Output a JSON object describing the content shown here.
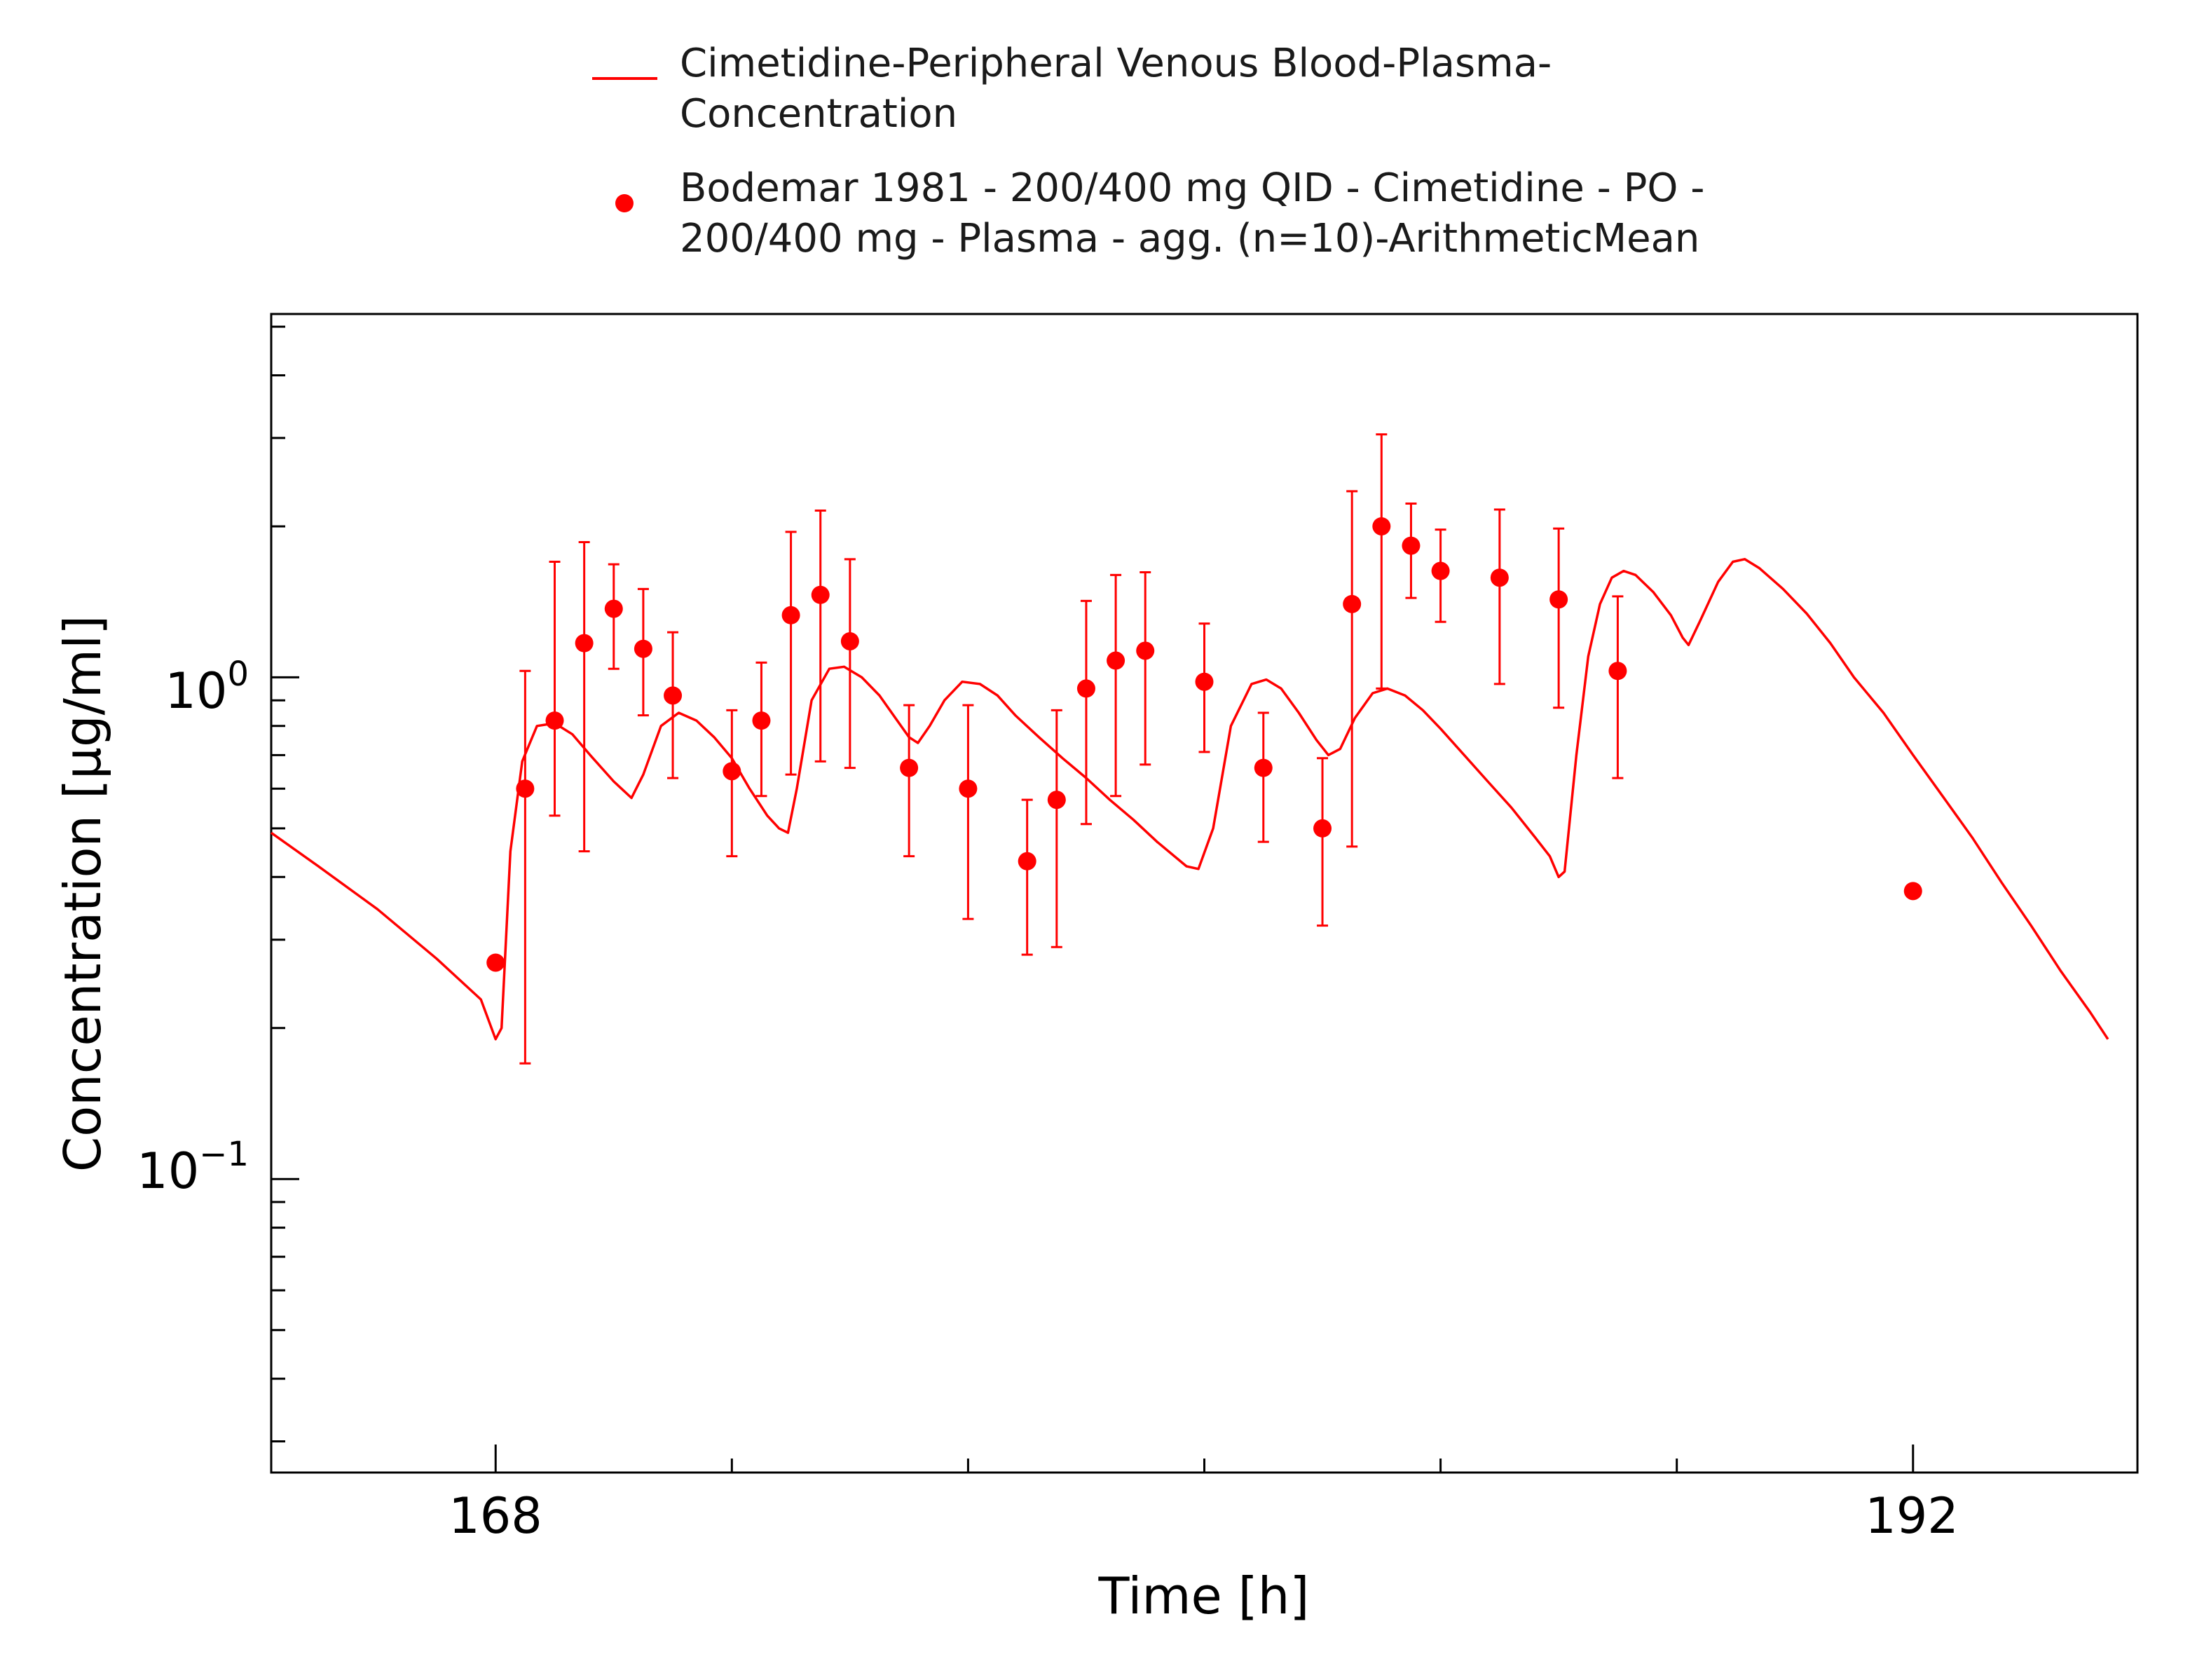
{
  "chart_data": {
    "type": "line",
    "xlabel": "Time [h]",
    "ylabel": "Concentration [µg/ml]",
    "xlim": [
      164.2,
      195.8
    ],
    "ylim": [
      0.026,
      5.3
    ],
    "yscale": "log",
    "grid": false,
    "legend_position": "top",
    "x_ticks": [
      {
        "value": 168,
        "label": "168"
      },
      {
        "value": 192,
        "label": "192"
      }
    ],
    "y_ticks": [
      {
        "value": 1.0,
        "base": "10",
        "exp": "0"
      },
      {
        "value": 0.1,
        "base": "10",
        "exp": "−1"
      }
    ],
    "color": "#ff0000",
    "legend": [
      {
        "kind": "line",
        "lines": [
          "Cimetidine-Peripheral Venous Blood-Plasma-",
          "Concentration"
        ]
      },
      {
        "kind": "marker",
        "lines": [
          "Bodemar 1981 - 200/400 mg QID - Cimetidine - PO -",
          "200/400 mg - Plasma - agg. (n=10)-ArithmeticMean"
        ]
      }
    ],
    "series": [
      {
        "kind": "line",
        "points": [
          [
            164.2,
            0.49
          ],
          [
            165,
            0.42
          ],
          [
            166,
            0.345
          ],
          [
            167,
            0.275
          ],
          [
            167.75,
            0.228
          ],
          [
            168,
            0.19
          ],
          [
            168.1,
            0.2
          ],
          [
            168.25,
            0.45
          ],
          [
            168.45,
            0.68
          ],
          [
            168.7,
            0.8
          ],
          [
            169.0,
            0.81
          ],
          [
            169.3,
            0.77
          ],
          [
            169.6,
            0.7
          ],
          [
            170.0,
            0.62
          ],
          [
            170.3,
            0.575
          ],
          [
            170.5,
            0.64
          ],
          [
            170.8,
            0.8
          ],
          [
            171.1,
            0.85
          ],
          [
            171.4,
            0.82
          ],
          [
            171.7,
            0.76
          ],
          [
            172.0,
            0.69
          ],
          [
            172.3,
            0.6
          ],
          [
            172.6,
            0.53
          ],
          [
            172.8,
            0.5
          ],
          [
            172.95,
            0.49
          ],
          [
            173.1,
            0.6
          ],
          [
            173.35,
            0.9
          ],
          [
            173.65,
            1.04
          ],
          [
            173.9,
            1.05
          ],
          [
            174.2,
            1.0
          ],
          [
            174.5,
            0.92
          ],
          [
            174.8,
            0.82
          ],
          [
            175.0,
            0.76
          ],
          [
            175.15,
            0.74
          ],
          [
            175.35,
            0.8
          ],
          [
            175.6,
            0.9
          ],
          [
            175.9,
            0.98
          ],
          [
            176.2,
            0.97
          ],
          [
            176.5,
            0.92
          ],
          [
            176.8,
            0.84
          ],
          [
            177.2,
            0.76
          ],
          [
            177.6,
            0.69
          ],
          [
            178.0,
            0.63
          ],
          [
            178.4,
            0.57
          ],
          [
            178.8,
            0.52
          ],
          [
            179.2,
            0.47
          ],
          [
            179.7,
            0.42
          ],
          [
            179.9,
            0.415
          ],
          [
            180.15,
            0.5
          ],
          [
            180.45,
            0.8
          ],
          [
            180.8,
            0.97
          ],
          [
            181.05,
            0.99
          ],
          [
            181.3,
            0.95
          ],
          [
            181.6,
            0.85
          ],
          [
            181.9,
            0.75
          ],
          [
            182.1,
            0.7
          ],
          [
            182.3,
            0.72
          ],
          [
            182.55,
            0.83
          ],
          [
            182.85,
            0.93
          ],
          [
            183.1,
            0.95
          ],
          [
            183.4,
            0.92
          ],
          [
            183.7,
            0.86
          ],
          [
            184.0,
            0.79
          ],
          [
            184.4,
            0.7
          ],
          [
            184.8,
            0.62
          ],
          [
            185.2,
            0.55
          ],
          [
            185.6,
            0.48
          ],
          [
            185.85,
            0.44
          ],
          [
            186.0,
            0.4
          ],
          [
            186.1,
            0.41
          ],
          [
            186.3,
            0.7
          ],
          [
            186.5,
            1.1
          ],
          [
            186.7,
            1.4
          ],
          [
            186.9,
            1.58
          ],
          [
            187.1,
            1.63
          ],
          [
            187.3,
            1.6
          ],
          [
            187.6,
            1.48
          ],
          [
            187.9,
            1.33
          ],
          [
            188.1,
            1.2
          ],
          [
            188.2,
            1.16
          ],
          [
            188.4,
            1.3
          ],
          [
            188.7,
            1.55
          ],
          [
            188.95,
            1.7
          ],
          [
            189.15,
            1.72
          ],
          [
            189.4,
            1.65
          ],
          [
            189.8,
            1.5
          ],
          [
            190.2,
            1.34
          ],
          [
            190.6,
            1.17
          ],
          [
            191.0,
            1.0
          ],
          [
            191.5,
            0.85
          ],
          [
            192.0,
            0.7
          ],
          [
            192.5,
            0.58
          ],
          [
            193.0,
            0.48
          ],
          [
            193.5,
            0.39
          ],
          [
            194.0,
            0.32
          ],
          [
            194.5,
            0.26
          ],
          [
            195.0,
            0.215
          ],
          [
            195.3,
            0.19
          ]
        ]
      },
      {
        "kind": "points",
        "points": [
          {
            "x": 168.0,
            "y": 0.27,
            "lo": 0.27,
            "hi": 0.27
          },
          {
            "x": 168.5,
            "y": 0.6,
            "lo": 0.17,
            "hi": 1.03
          },
          {
            "x": 169.0,
            "y": 0.82,
            "lo": 0.53,
            "hi": 1.7
          },
          {
            "x": 169.5,
            "y": 1.17,
            "lo": 0.45,
            "hi": 1.86
          },
          {
            "x": 170.0,
            "y": 1.37,
            "lo": 1.04,
            "hi": 1.68
          },
          {
            "x": 170.5,
            "y": 1.14,
            "lo": 0.84,
            "hi": 1.5
          },
          {
            "x": 171.0,
            "y": 0.92,
            "lo": 0.63,
            "hi": 1.23
          },
          {
            "x": 172.0,
            "y": 0.65,
            "lo": 0.44,
            "hi": 0.86
          },
          {
            "x": 172.5,
            "y": 0.82,
            "lo": 0.58,
            "hi": 1.07
          },
          {
            "x": 173.0,
            "y": 1.33,
            "lo": 0.64,
            "hi": 1.95
          },
          {
            "x": 173.5,
            "y": 1.46,
            "lo": 0.68,
            "hi": 2.15
          },
          {
            "x": 174.0,
            "y": 1.18,
            "lo": 0.66,
            "hi": 1.72
          },
          {
            "x": 175.0,
            "y": 0.66,
            "lo": 0.44,
            "hi": 0.88
          },
          {
            "x": 176.0,
            "y": 0.6,
            "lo": 0.33,
            "hi": 0.88
          },
          {
            "x": 177.0,
            "y": 0.43,
            "lo": 0.28,
            "hi": 0.57
          },
          {
            "x": 177.5,
            "y": 0.57,
            "lo": 0.29,
            "hi": 0.86
          },
          {
            "x": 178.0,
            "y": 0.95,
            "lo": 0.51,
            "hi": 1.42
          },
          {
            "x": 178.5,
            "y": 1.08,
            "lo": 0.58,
            "hi": 1.6
          },
          {
            "x": 179.0,
            "y": 1.13,
            "lo": 0.67,
            "hi": 1.62
          },
          {
            "x": 180.0,
            "y": 0.98,
            "lo": 0.71,
            "hi": 1.28
          },
          {
            "x": 181.0,
            "y": 0.66,
            "lo": 0.47,
            "hi": 0.85
          },
          {
            "x": 182.0,
            "y": 0.5,
            "lo": 0.32,
            "hi": 0.69
          },
          {
            "x": 182.5,
            "y": 1.4,
            "lo": 0.46,
            "hi": 2.35
          },
          {
            "x": 183.0,
            "y": 2.0,
            "lo": 0.95,
            "hi": 3.05
          },
          {
            "x": 183.5,
            "y": 1.83,
            "lo": 1.44,
            "hi": 2.22
          },
          {
            "x": 184.0,
            "y": 1.63,
            "lo": 1.29,
            "hi": 1.97
          },
          {
            "x": 185.0,
            "y": 1.58,
            "lo": 0.97,
            "hi": 2.16
          },
          {
            "x": 186.0,
            "y": 1.43,
            "lo": 0.87,
            "hi": 1.98
          },
          {
            "x": 187.0,
            "y": 1.03,
            "lo": 0.63,
            "hi": 1.45
          },
          {
            "x": 192.0,
            "y": 0.375,
            "lo": 0.375,
            "hi": 0.375
          }
        ]
      }
    ]
  }
}
